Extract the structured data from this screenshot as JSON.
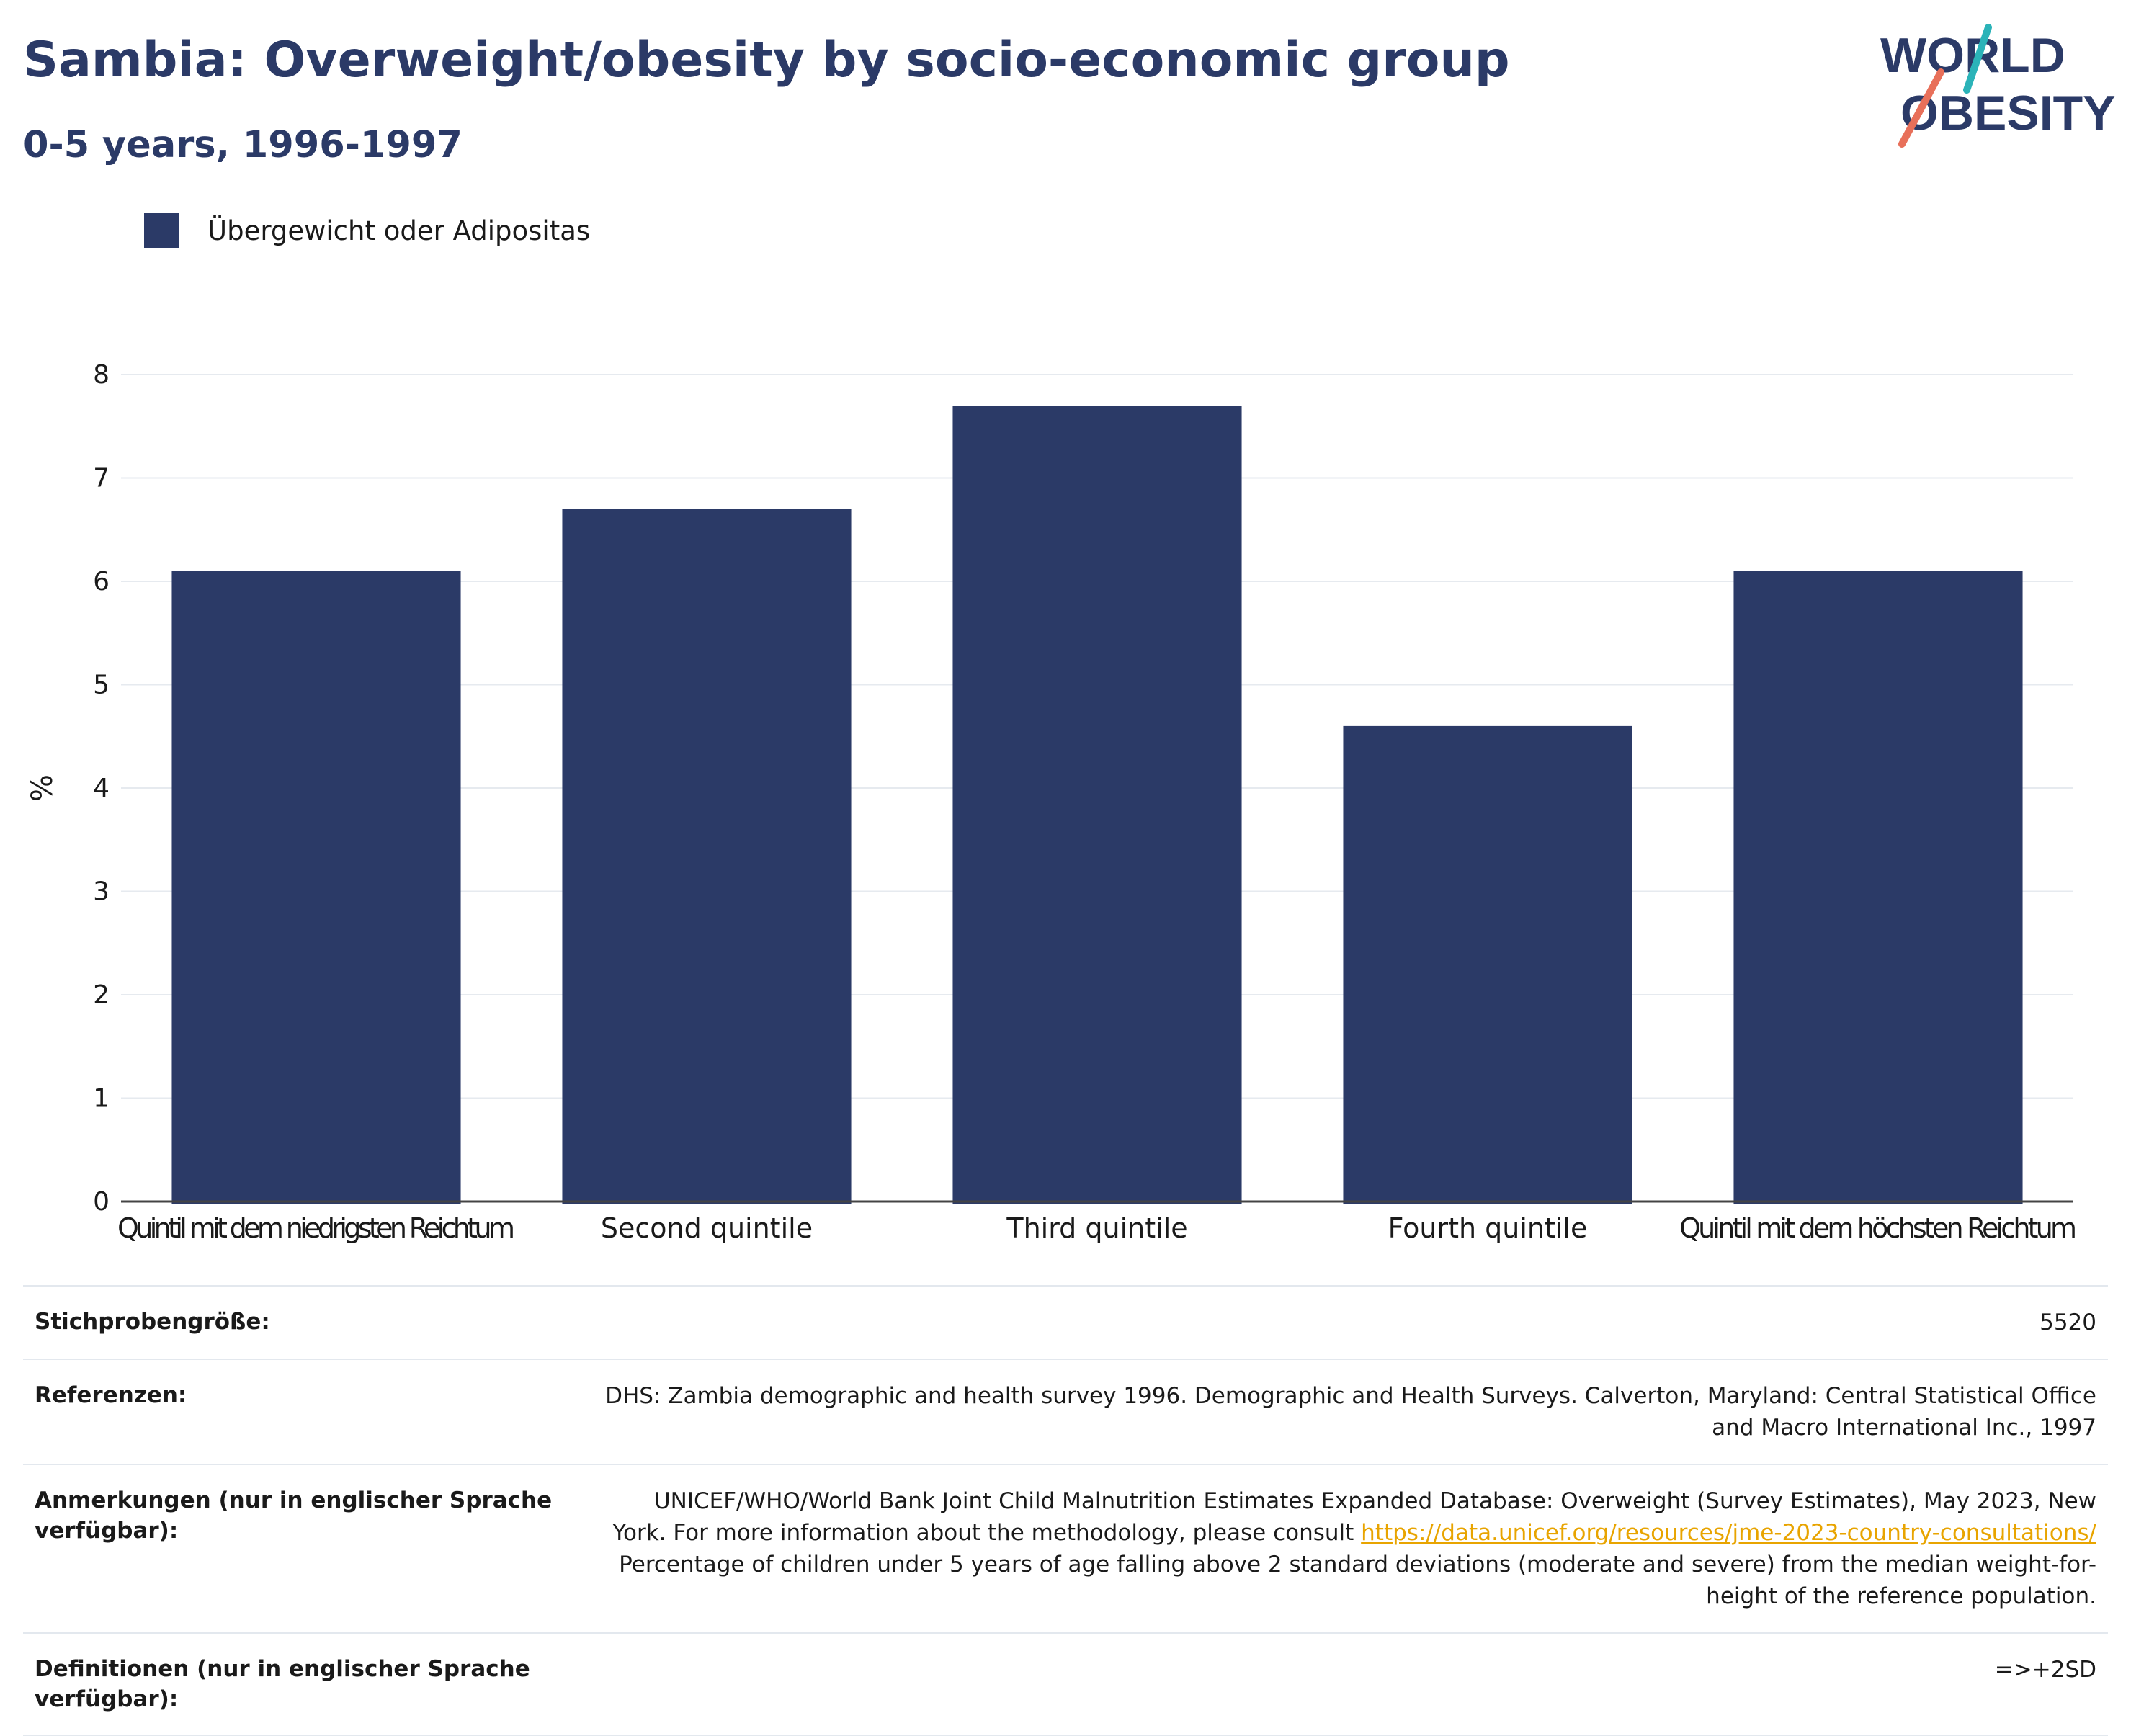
{
  "header": {
    "title": "Sambia: Overweight/obesity by socio-economic group",
    "subtitle": "0-5 years, 1996-1997"
  },
  "logo": {
    "line1": "WORLD",
    "line2": "OBESITY"
  },
  "colors": {
    "bar": "#2b3a67",
    "title": "#2b3a67",
    "link": "#e8a400",
    "logo_teal": "#2bb3b8",
    "logo_coral": "#e8705a"
  },
  "chart_data": {
    "type": "bar",
    "categories": [
      "Quintil mit dem niedrigsten Reichtum",
      "Second quintile",
      "Third quintile",
      "Fourth quintile",
      "Quintil mit dem höchsten Reichtum"
    ],
    "series": [
      {
        "name": "Übergewicht oder Adipositas",
        "values": [
          6.1,
          6.7,
          7.7,
          4.6,
          6.1
        ]
      }
    ],
    "ylabel": "%",
    "ylim": [
      0,
      8
    ],
    "yticks": [
      0,
      1,
      2,
      3,
      4,
      5,
      6,
      7,
      8
    ],
    "grid": true,
    "legend_position": "top-left"
  },
  "info": {
    "sample_label": "Stichprobengröße:",
    "sample_value": "5520",
    "references_label": "Referenzen:",
    "references_value": "DHS: Zambia demographic and health survey 1996. Demographic and Health Surveys. Calverton, Maryland: Central Statistical Office and Macro International Inc., 1997",
    "notes_label": "Anmerkungen (nur in englischer Sprache verfügbar):",
    "notes_value_1": "UNICEF/WHO/World Bank Joint Child Malnutrition Estimates Expanded Database: Overweight (Survey Estimates), May 2023, New York. For more information about the methodology, please consult",
    "notes_link": "https://data.unicef.org/resources/jme-2023-country-consultations/",
    "notes_value_2": "Percentage of children under 5 years of age falling above 2 standard deviations (moderate and severe) from the median weight-for-height of the reference population.",
    "definitions_label": "Definitionen (nur in englischer Sprache verfügbar):",
    "definitions_value": "=>+2SD"
  }
}
